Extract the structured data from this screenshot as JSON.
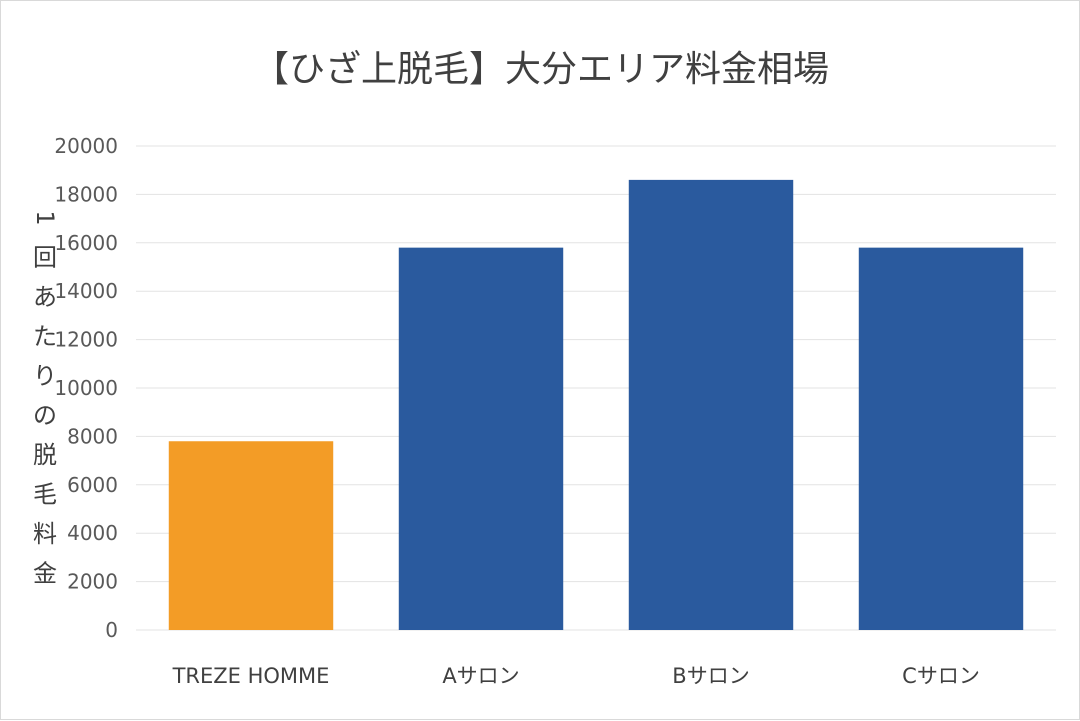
{
  "chart_data": {
    "type": "bar",
    "title": "【ひざ上脱毛】大分エリア料金相場",
    "ylabel": "1回あたりの脱毛料金",
    "xlabel": "",
    "categories": [
      "TREZE HOMME",
      "Aサロン",
      "Bサロン",
      "Cサロン"
    ],
    "values": [
      7800,
      15800,
      18600,
      15800
    ],
    "bar_colors": [
      "#F39C26",
      "#2A5A9E",
      "#2A5A9E",
      "#2A5A9E"
    ],
    "ylim": [
      0,
      20000
    ],
    "y_ticks": [
      0,
      2000,
      4000,
      6000,
      8000,
      10000,
      12000,
      14000,
      16000,
      18000,
      20000
    ],
    "grid": true,
    "legend": "none"
  }
}
